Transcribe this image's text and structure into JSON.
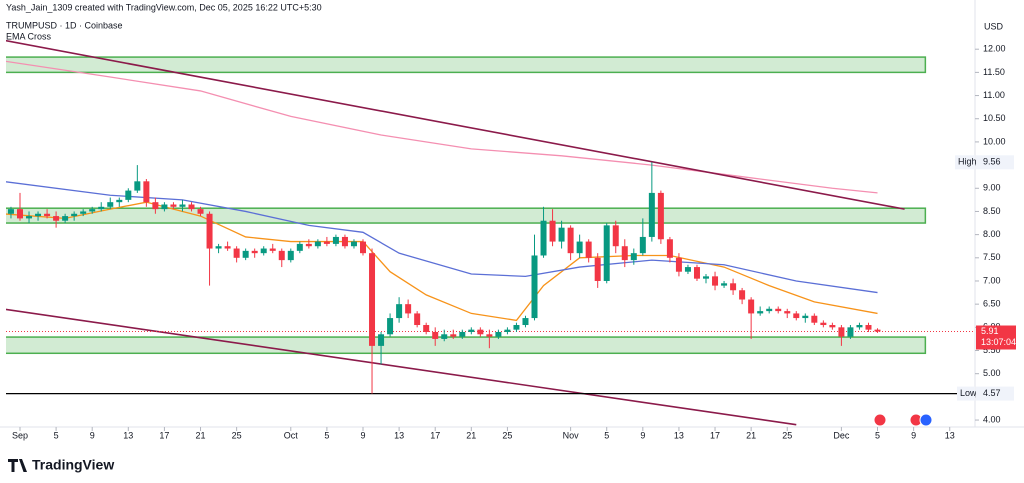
{
  "header": {
    "credit": "Yash_Jain_1309 created with TradingView.com, Dec 05, 2025 16:22 UTC+5:30",
    "symbol": "TRUMPUSD · 1D · Coinbase",
    "indicator": "EMA Cross",
    "currency": "USD",
    "logo": "TradingView"
  },
  "chart_data": {
    "type": "candlestick",
    "xlim": [
      -1.55,
      105.8
    ],
    "ylim": [
      3.85,
      12.63
    ],
    "xticks": [
      {
        "value": 0,
        "label": "Sep"
      },
      {
        "value": 4,
        "label": "5"
      },
      {
        "value": 8,
        "label": "9"
      },
      {
        "value": 12,
        "label": "13"
      },
      {
        "value": 16,
        "label": "17"
      },
      {
        "value": 20,
        "label": "21"
      },
      {
        "value": 24,
        "label": "25"
      },
      {
        "value": 30,
        "label": "Oct"
      },
      {
        "value": 34,
        "label": "5"
      },
      {
        "value": 38,
        "label": "9"
      },
      {
        "value": 42,
        "label": "13"
      },
      {
        "value": 46,
        "label": "17"
      },
      {
        "value": 50,
        "label": "21"
      },
      {
        "value": 54,
        "label": "25"
      },
      {
        "value": 61,
        "label": "Nov"
      },
      {
        "value": 65,
        "label": "5"
      },
      {
        "value": 69,
        "label": "9"
      },
      {
        "value": 73,
        "label": "13"
      },
      {
        "value": 77,
        "label": "17"
      },
      {
        "value": 81,
        "label": "21"
      },
      {
        "value": 85,
        "label": "25"
      },
      {
        "value": 91,
        "label": "Dec"
      },
      {
        "value": 95,
        "label": "5"
      },
      {
        "value": 99,
        "label": "9"
      },
      {
        "value": 103,
        "label": "13"
      }
    ],
    "yticks": [
      {
        "value": 4,
        "label": "4.00"
      },
      {
        "value": 4.5,
        "label": "4.50"
      },
      {
        "value": 5,
        "label": "5.00"
      },
      {
        "value": 5.5,
        "label": "5.50"
      },
      {
        "value": 6,
        "label": "6.00"
      },
      {
        "value": 6.5,
        "label": "6.50"
      },
      {
        "value": 7,
        "label": "7.00"
      },
      {
        "value": 7.5,
        "label": "7.50"
      },
      {
        "value": 8,
        "label": "8.00"
      },
      {
        "value": 8.5,
        "label": "8.50"
      },
      {
        "value": 9,
        "label": "9.00"
      },
      {
        "value": 9.5,
        "label": "9.50"
      },
      {
        "value": 10,
        "label": "10.00"
      },
      {
        "value": 10.5,
        "label": "10.50"
      },
      {
        "value": 11,
        "label": "11.00"
      },
      {
        "value": 11.5,
        "label": "11.50"
      },
      {
        "value": 12,
        "label": "12.00"
      }
    ],
    "up_color": "#089981",
    "down_color": "#f23645",
    "candles": {
      "x": [
        -1,
        0,
        1,
        2,
        3,
        4,
        5,
        6,
        7,
        8,
        9,
        10,
        11,
        12,
        13,
        14,
        15,
        16,
        17,
        18,
        19,
        20,
        21,
        22,
        23,
        24,
        25,
        26,
        27,
        28,
        29,
        30,
        31,
        32,
        33,
        34,
        35,
        36,
        37,
        38,
        39,
        40,
        41,
        42,
        43,
        44,
        45,
        46,
        47,
        48,
        49,
        50,
        51,
        52,
        53,
        54,
        55,
        56,
        57,
        58,
        59,
        60,
        61,
        62,
        63,
        64,
        65,
        66,
        67,
        68,
        69,
        70,
        71,
        72,
        73,
        74,
        75,
        76,
        77,
        78,
        79,
        80,
        81,
        82,
        83,
        84,
        85,
        86,
        87,
        88,
        89,
        90,
        91,
        92,
        93,
        94,
        95
      ],
      "open": [
        8.45,
        8.55,
        8.35,
        8.4,
        8.45,
        8.4,
        8.3,
        8.4,
        8.45,
        8.5,
        8.55,
        8.6,
        8.7,
        8.75,
        8.95,
        9.15,
        8.7,
        8.55,
        8.65,
        8.6,
        8.65,
        8.55,
        8.45,
        7.7,
        7.75,
        7.7,
        7.5,
        7.65,
        7.6,
        7.7,
        7.65,
        7.45,
        7.65,
        7.8,
        7.75,
        7.85,
        7.8,
        7.95,
        7.75,
        7.85,
        7.6,
        5.6,
        5.85,
        6.2,
        6.5,
        6.3,
        6.05,
        5.9,
        5.75,
        5.85,
        5.8,
        5.9,
        5.95,
        5.85,
        5.8,
        5.9,
        5.95,
        6.05,
        6.2,
        7.55,
        8.3,
        7.85,
        8.15,
        7.6,
        7.85,
        7.5,
        7.0,
        8.2,
        7.75,
        7.45,
        7.6,
        7.95,
        8.9,
        7.9,
        7.5,
        7.2,
        7.3,
        7.05,
        7.1,
        6.9,
        6.95,
        6.8,
        6.6,
        6.3,
        6.35,
        6.4,
        6.35,
        6.3,
        6.2,
        6.25,
        6.1,
        6.05,
        6.0,
        5.8,
        6.0,
        6.05,
        5.95
      ],
      "high": [
        8.6,
        8.9,
        8.5,
        8.5,
        8.55,
        8.5,
        8.45,
        8.5,
        8.55,
        8.6,
        8.7,
        8.8,
        8.8,
        9.0,
        9.5,
        9.2,
        8.8,
        8.7,
        8.7,
        8.75,
        8.7,
        8.6,
        8.5,
        7.8,
        7.85,
        7.75,
        7.7,
        7.7,
        7.75,
        7.8,
        7.7,
        7.7,
        7.85,
        7.9,
        7.9,
        7.95,
        8.0,
        8.0,
        7.9,
        7.9,
        7.7,
        5.9,
        6.3,
        6.65,
        6.6,
        6.35,
        6.1,
        6.0,
        5.95,
        5.95,
        5.95,
        6.0,
        6.0,
        5.95,
        5.95,
        6.0,
        6.1,
        6.25,
        8.0,
        8.6,
        8.55,
        8.3,
        8.2,
        8.0,
        7.9,
        7.6,
        8.25,
        8.3,
        7.9,
        7.7,
        8.35,
        9.56,
        8.95,
        7.95,
        7.6,
        7.35,
        7.35,
        7.15,
        7.2,
        7.0,
        7.05,
        6.85,
        6.65,
        6.45,
        6.45,
        6.45,
        6.4,
        6.35,
        6.3,
        6.3,
        6.15,
        6.1,
        6.05,
        6.05,
        6.1,
        6.1,
        5.98
      ],
      "low": [
        8.35,
        8.3,
        8.25,
        8.3,
        8.35,
        8.15,
        8.25,
        8.3,
        8.4,
        8.45,
        8.5,
        8.55,
        8.6,
        8.7,
        8.9,
        8.6,
        8.45,
        8.5,
        8.55,
        8.5,
        8.5,
        8.4,
        6.9,
        7.6,
        7.65,
        7.4,
        7.45,
        7.5,
        7.55,
        7.6,
        7.3,
        7.4,
        7.6,
        7.7,
        7.7,
        7.75,
        7.75,
        7.7,
        7.7,
        7.55,
        4.57,
        5.2,
        5.8,
        6.1,
        6.2,
        6.0,
        5.85,
        5.6,
        5.7,
        5.75,
        5.75,
        5.85,
        5.8,
        5.55,
        5.75,
        5.85,
        5.9,
        6.0,
        6.15,
        7.5,
        7.75,
        7.7,
        7.45,
        7.5,
        7.4,
        6.85,
        6.95,
        7.6,
        7.3,
        7.35,
        7.55,
        7.85,
        7.8,
        7.4,
        7.1,
        7.15,
        7.0,
        6.95,
        6.8,
        6.85,
        6.7,
        6.5,
        5.75,
        6.25,
        6.3,
        6.3,
        6.2,
        6.15,
        6.1,
        6.05,
        6.0,
        5.95,
        5.6,
        5.75,
        5.95,
        5.9,
        5.88
      ],
      "close": [
        8.55,
        8.35,
        8.4,
        8.45,
        8.4,
        8.3,
        8.4,
        8.45,
        8.5,
        8.55,
        8.6,
        8.7,
        8.75,
        8.95,
        9.15,
        8.7,
        8.55,
        8.65,
        8.6,
        8.65,
        8.55,
        8.45,
        7.7,
        7.75,
        7.7,
        7.5,
        7.65,
        7.6,
        7.7,
        7.65,
        7.45,
        7.65,
        7.8,
        7.75,
        7.85,
        7.8,
        7.95,
        7.75,
        7.85,
        7.6,
        5.6,
        5.85,
        6.2,
        6.5,
        6.3,
        6.05,
        5.9,
        5.75,
        5.85,
        5.8,
        5.9,
        5.95,
        5.85,
        5.8,
        5.9,
        5.95,
        6.05,
        6.2,
        7.55,
        8.3,
        7.85,
        8.15,
        7.6,
        7.85,
        7.5,
        7.0,
        8.2,
        7.75,
        7.45,
        7.6,
        7.95,
        8.9,
        7.9,
        7.5,
        7.2,
        7.3,
        7.05,
        7.1,
        6.9,
        6.95,
        6.8,
        6.6,
        6.3,
        6.35,
        6.4,
        6.35,
        6.3,
        6.2,
        6.25,
        6.1,
        6.05,
        6.0,
        5.8,
        6.0,
        6.05,
        5.95,
        5.91
      ]
    },
    "ema_lines": [
      {
        "color": "#f7931a",
        "x": [
          -2,
          5,
          10,
          14,
          20,
          25,
          30,
          38,
          41,
          45,
          50,
          55,
          58,
          62,
          68,
          72,
          78,
          83,
          88,
          95
        ],
        "values": [
          8.45,
          8.35,
          8.55,
          8.7,
          8.4,
          7.95,
          7.85,
          7.85,
          7.2,
          6.7,
          6.3,
          6.15,
          6.9,
          7.5,
          7.55,
          7.55,
          7.3,
          6.9,
          6.55,
          6.3
        ]
      },
      {
        "color": "#5b6fd6",
        "x": [
          -2,
          10,
          18,
          25,
          32,
          38,
          42,
          50,
          56,
          62,
          70,
          78,
          86,
          95
        ],
        "values": [
          9.15,
          8.85,
          8.75,
          8.5,
          8.2,
          8.05,
          7.6,
          7.15,
          7.1,
          7.3,
          7.45,
          7.35,
          7.0,
          6.75
        ]
      },
      {
        "color": "#f48fb1",
        "x": [
          -2,
          10,
          20,
          30,
          40,
          50,
          60,
          70,
          80,
          90,
          95
        ],
        "values": [
          11.75,
          11.4,
          11.1,
          10.55,
          10.15,
          9.85,
          9.7,
          9.5,
          9.25,
          9.0,
          8.9
        ]
      }
    ],
    "trendlines": [
      {
        "color": "#8b1a4a",
        "x": [
          -2,
          98
        ],
        "values": [
          12.2,
          8.55
        ]
      },
      {
        "color": "#8b1a4a",
        "x": [
          -2,
          86
        ],
        "values": [
          6.4,
          3.9
        ]
      }
    ],
    "zones": [
      {
        "x": [
          -2,
          100.3
        ],
        "range": [
          11.5,
          11.83
        ]
      },
      {
        "x": [
          -2,
          100.3
        ],
        "range": [
          8.25,
          8.57
        ]
      },
      {
        "x": [
          -2,
          100.3
        ],
        "range": [
          5.44,
          5.79
        ]
      }
    ],
    "high": {
      "label": "High",
      "value": 9.56
    },
    "low": {
      "label": "Low",
      "value": 4.57
    },
    "last": {
      "value": 5.91,
      "countdown": "13:07:04"
    }
  }
}
